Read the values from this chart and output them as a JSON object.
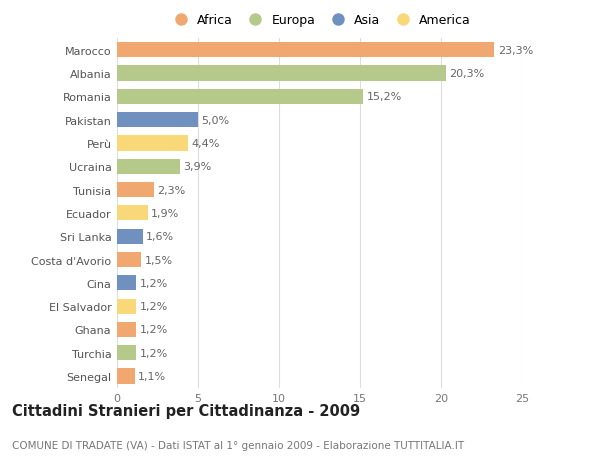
{
  "countries": [
    "Marocco",
    "Albania",
    "Romania",
    "Pakistan",
    "Perù",
    "Ucraina",
    "Tunisia",
    "Ecuador",
    "Sri Lanka",
    "Costa d'Avorio",
    "Cina",
    "El Salvador",
    "Ghana",
    "Turchia",
    "Senegal"
  ],
  "values": [
    23.3,
    20.3,
    15.2,
    5.0,
    4.4,
    3.9,
    2.3,
    1.9,
    1.6,
    1.5,
    1.2,
    1.2,
    1.2,
    1.2,
    1.1
  ],
  "continents": [
    "Africa",
    "Europa",
    "Europa",
    "Asia",
    "America",
    "Europa",
    "Africa",
    "America",
    "Asia",
    "Africa",
    "Asia",
    "America",
    "Africa",
    "Europa",
    "Africa"
  ],
  "continent_colors": {
    "Africa": "#F0A870",
    "Europa": "#B5C98A",
    "Asia": "#7090C0",
    "America": "#F8D878"
  },
  "legend_order": [
    "Africa",
    "Europa",
    "Asia",
    "America"
  ],
  "title1": "Cittadini Stranieri per Cittadinanza - 2009",
  "title2": "COMUNE DI TRADATE (VA) - Dati ISTAT al 1° gennaio 2009 - Elaborazione TUTTITALIA.IT",
  "xlim": [
    0,
    25
  ],
  "xticks": [
    0,
    5,
    10,
    15,
    20,
    25
  ],
  "bar_height": 0.65,
  "background_color": "#ffffff",
  "grid_color": "#dddddd",
  "label_fontsize": 8,
  "tick_fontsize": 8,
  "ytick_fontsize": 8,
  "title1_fontsize": 10.5,
  "title2_fontsize": 7.5
}
